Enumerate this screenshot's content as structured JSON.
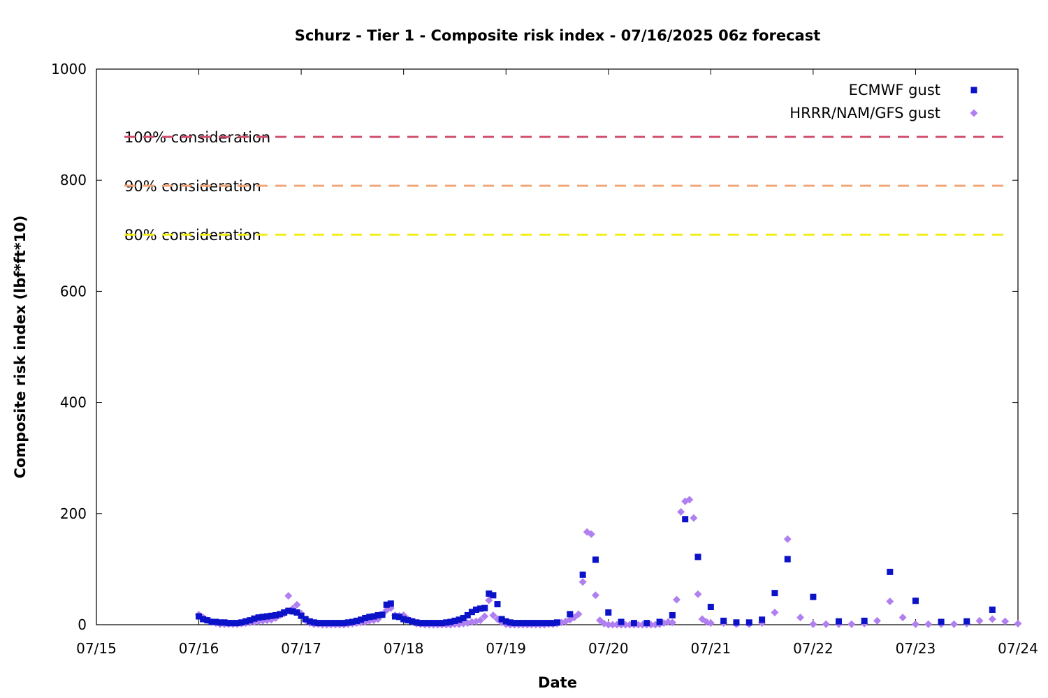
{
  "chart_data": {
    "type": "scatter",
    "title": "Schurz - Tier 1 - Composite risk index - 07/16/2025 06z forecast",
    "xlabel": "Date",
    "ylabel": "Composite risk index (lbf*ft*10)",
    "x_unit": "days",
    "xlim": [
      "07/15",
      "07/24"
    ],
    "ylim": [
      0,
      1000
    ],
    "x_ticks": [
      "07/15",
      "07/16",
      "07/17",
      "07/18",
      "07/19",
      "07/20",
      "07/21",
      "07/22",
      "07/23",
      "07/24"
    ],
    "y_ticks": [
      0,
      200,
      400,
      600,
      800,
      1000
    ],
    "grid": false,
    "legend_position": "top-right",
    "reference_lines": [
      {
        "label": "100% consideration",
        "value": 878,
        "color": "#d0506e"
      },
      {
        "label": "90% consideration",
        "value": 790,
        "color": "#f2a678"
      },
      {
        "label": "80% consideration",
        "value": 702,
        "color": "#f3ee1a"
      }
    ],
    "series": [
      {
        "name": "ECMWF gust",
        "marker": "square",
        "color": "#0b12c8",
        "points": [
          [
            "07/16 00z",
            15
          ],
          [
            "07/16 01z",
            10
          ],
          [
            "07/16 02z",
            8
          ],
          [
            "07/16 03z",
            5
          ],
          [
            "07/16 04z",
            5
          ],
          [
            "07/16 05z",
            4
          ],
          [
            "07/16 06z",
            4
          ],
          [
            "07/16 07z",
            3
          ],
          [
            "07/16 08z",
            3
          ],
          [
            "07/16 09z",
            3
          ],
          [
            "07/16 10z",
            4
          ],
          [
            "07/16 11z",
            6
          ],
          [
            "07/16 12z",
            8
          ],
          [
            "07/16 13z",
            11
          ],
          [
            "07/16 14z",
            13
          ],
          [
            "07/16 15z",
            14
          ],
          [
            "07/16 16z",
            15
          ],
          [
            "07/16 17z",
            16
          ],
          [
            "07/16 18z",
            17
          ],
          [
            "07/16 19z",
            19
          ],
          [
            "07/16 20z",
            22
          ],
          [
            "07/16 21z",
            25
          ],
          [
            "07/16 22z",
            24
          ],
          [
            "07/16 23z",
            22
          ],
          [
            "07/17 00z",
            16
          ],
          [
            "07/17 01z",
            10
          ],
          [
            "07/17 02z",
            6
          ],
          [
            "07/17 03z",
            4
          ],
          [
            "07/17 04z",
            3
          ],
          [
            "07/17 05z",
            3
          ],
          [
            "07/17 06z",
            3
          ],
          [
            "07/17 07z",
            3
          ],
          [
            "07/17 08z",
            3
          ],
          [
            "07/17 09z",
            3
          ],
          [
            "07/17 10z",
            3
          ],
          [
            "07/17 11z",
            4
          ],
          [
            "07/17 12z",
            5
          ],
          [
            "07/17 13z",
            7
          ],
          [
            "07/17 14z",
            9
          ],
          [
            "07/17 15z",
            12
          ],
          [
            "07/17 16z",
            14
          ],
          [
            "07/17 17z",
            15
          ],
          [
            "07/17 18z",
            17
          ],
          [
            "07/17 19z",
            18
          ],
          [
            "07/17 20z",
            36
          ],
          [
            "07/17 21z",
            38
          ],
          [
            "07/17 22z",
            15
          ],
          [
            "07/17 23z",
            14
          ],
          [
            "07/18 00z",
            10
          ],
          [
            "07/18 01z",
            8
          ],
          [
            "07/18 02z",
            6
          ],
          [
            "07/18 03z",
            4
          ],
          [
            "07/18 04z",
            3
          ],
          [
            "07/18 05z",
            3
          ],
          [
            "07/18 06z",
            3
          ],
          [
            "07/18 07z",
            3
          ],
          [
            "07/18 08z",
            3
          ],
          [
            "07/18 09z",
            3
          ],
          [
            "07/18 10z",
            4
          ],
          [
            "07/18 11z",
            5
          ],
          [
            "07/18 12z",
            7
          ],
          [
            "07/18 13z",
            9
          ],
          [
            "07/18 14z",
            12
          ],
          [
            "07/18 15z",
            17
          ],
          [
            "07/18 16z",
            23
          ],
          [
            "07/18 17z",
            27
          ],
          [
            "07/18 18z",
            29
          ],
          [
            "07/18 19z",
            30
          ],
          [
            "07/18 20z",
            56
          ],
          [
            "07/18 21z",
            53
          ],
          [
            "07/18 22z",
            37
          ],
          [
            "07/18 23z",
            10
          ],
          [
            "07/19 00z",
            6
          ],
          [
            "07/19 01z",
            4
          ],
          [
            "07/19 02z",
            3
          ],
          [
            "07/19 03z",
            3
          ],
          [
            "07/19 04z",
            3
          ],
          [
            "07/19 05z",
            3
          ],
          [
            "07/19 06z",
            3
          ],
          [
            "07/19 07z",
            3
          ],
          [
            "07/19 08z",
            3
          ],
          [
            "07/19 09z",
            3
          ],
          [
            "07/19 10z",
            3
          ],
          [
            "07/19 11z",
            3
          ],
          [
            "07/19 12z",
            4
          ],
          [
            "07/19 15z",
            19
          ],
          [
            "07/19 18z",
            90
          ],
          [
            "07/19 21z",
            117
          ],
          [
            "07/20 00z",
            22
          ],
          [
            "07/20 03z",
            5
          ],
          [
            "07/20 06z",
            3
          ],
          [
            "07/20 09z",
            3
          ],
          [
            "07/20 12z",
            5
          ],
          [
            "07/20 15z",
            17
          ],
          [
            "07/20 18z",
            190
          ],
          [
            "07/20 21z",
            122
          ],
          [
            "07/21 00z",
            32
          ],
          [
            "07/21 03z",
            7
          ],
          [
            "07/21 06z",
            4
          ],
          [
            "07/21 09z",
            4
          ],
          [
            "07/21 12z",
            9
          ],
          [
            "07/21 15z",
            57
          ],
          [
            "07/21 18z",
            118
          ],
          [
            "07/22 00z",
            50
          ],
          [
            "07/22 06z",
            6
          ],
          [
            "07/22 12z",
            7
          ],
          [
            "07/22 18z",
            95
          ],
          [
            "07/23 00z",
            43
          ],
          [
            "07/23 06z",
            5
          ],
          [
            "07/23 12z",
            6
          ],
          [
            "07/23 18z",
            27
          ]
        ]
      },
      {
        "name": "HRRR/NAM/GFS gust",
        "marker": "diamond",
        "color": "#b07ff0",
        "points": [
          [
            "07/16 00z",
            18
          ],
          [
            "07/16 01z",
            13
          ],
          [
            "07/16 02z",
            8
          ],
          [
            "07/16 03z",
            5
          ],
          [
            "07/16 04z",
            3
          ],
          [
            "07/16 05z",
            1
          ],
          [
            "07/16 06z",
            1
          ],
          [
            "07/16 07z",
            1
          ],
          [
            "07/16 08z",
            1
          ],
          [
            "07/16 09z",
            1
          ],
          [
            "07/16 10z",
            2
          ],
          [
            "07/16 11z",
            3
          ],
          [
            "07/16 12z",
            4
          ],
          [
            "07/16 13z",
            5
          ],
          [
            "07/16 14z",
            6
          ],
          [
            "07/16 15z",
            7
          ],
          [
            "07/16 16z",
            8
          ],
          [
            "07/16 17z",
            9
          ],
          [
            "07/16 18z",
            12
          ],
          [
            "07/16 19z",
            17
          ],
          [
            "07/16 20z",
            20
          ],
          [
            "07/16 21z",
            52
          ],
          [
            "07/16 22z",
            29
          ],
          [
            "07/16 23z",
            36
          ],
          [
            "07/17 00z",
            20
          ],
          [
            "07/17 01z",
            8
          ],
          [
            "07/17 02z",
            3
          ],
          [
            "07/17 03z",
            1
          ],
          [
            "07/17 04z",
            1
          ],
          [
            "07/17 05z",
            0
          ],
          [
            "07/17 06z",
            0
          ],
          [
            "07/17 07z",
            0
          ],
          [
            "07/17 08z",
            0
          ],
          [
            "07/17 09z",
            0
          ],
          [
            "07/17 10z",
            0
          ],
          [
            "07/17 11z",
            1
          ],
          [
            "07/17 12z",
            2
          ],
          [
            "07/17 13z",
            3
          ],
          [
            "07/17 14z",
            4
          ],
          [
            "07/17 15z",
            5
          ],
          [
            "07/17 16z",
            7
          ],
          [
            "07/17 17z",
            8
          ],
          [
            "07/17 18z",
            10
          ],
          [
            "07/17 19z",
            18
          ],
          [
            "07/17 20z",
            26
          ],
          [
            "07/17 21z",
            30
          ],
          [
            "07/17 22z",
            17
          ],
          [
            "07/17 23z",
            16
          ],
          [
            "07/18 00z",
            17
          ],
          [
            "07/18 01z",
            10
          ],
          [
            "07/18 02z",
            6
          ],
          [
            "07/18 03z",
            2
          ],
          [
            "07/18 04z",
            1
          ],
          [
            "07/18 05z",
            0
          ],
          [
            "07/18 06z",
            0
          ],
          [
            "07/18 07z",
            0
          ],
          [
            "07/18 08z",
            0
          ],
          [
            "07/18 09z",
            0
          ],
          [
            "07/18 10z",
            0
          ],
          [
            "07/18 11z",
            0
          ],
          [
            "07/18 12z",
            1
          ],
          [
            "07/18 13z",
            1
          ],
          [
            "07/18 14z",
            2
          ],
          [
            "07/18 15z",
            3
          ],
          [
            "07/18 16z",
            5
          ],
          [
            "07/18 17z",
            6
          ],
          [
            "07/18 18z",
            8
          ],
          [
            "07/18 19z",
            15
          ],
          [
            "07/18 20z",
            44
          ],
          [
            "07/18 21z",
            17
          ],
          [
            "07/18 22z",
            10
          ],
          [
            "07/18 23z",
            4
          ],
          [
            "07/19 00z",
            1
          ],
          [
            "07/19 01z",
            0
          ],
          [
            "07/19 02z",
            0
          ],
          [
            "07/19 03z",
            0
          ],
          [
            "07/19 04z",
            0
          ],
          [
            "07/19 05z",
            0
          ],
          [
            "07/19 06z",
            0
          ],
          [
            "07/19 07z",
            0
          ],
          [
            "07/19 08z",
            0
          ],
          [
            "07/19 09z",
            0
          ],
          [
            "07/19 10z",
            1
          ],
          [
            "07/19 11z",
            1
          ],
          [
            "07/19 12z",
            2
          ],
          [
            "07/19 13z",
            4
          ],
          [
            "07/19 14z",
            6
          ],
          [
            "07/19 15z",
            9
          ],
          [
            "07/19 16z",
            13
          ],
          [
            "07/19 17z",
            19
          ],
          [
            "07/19 18z",
            77
          ],
          [
            "07/19 19z",
            167
          ],
          [
            "07/19 20z",
            163
          ],
          [
            "07/19 21z",
            53
          ],
          [
            "07/19 22z",
            8
          ],
          [
            "07/19 23z",
            2
          ],
          [
            "07/20 00z",
            0
          ],
          [
            "07/20 01z",
            0
          ],
          [
            "07/20 02z",
            0
          ],
          [
            "07/20 03z",
            0
          ],
          [
            "07/20 04z",
            0
          ],
          [
            "07/20 05z",
            0
          ],
          [
            "07/20 06z",
            0
          ],
          [
            "07/20 07z",
            0
          ],
          [
            "07/20 08z",
            0
          ],
          [
            "07/20 09z",
            0
          ],
          [
            "07/20 10z",
            0
          ],
          [
            "07/20 11z",
            0
          ],
          [
            "07/20 12z",
            1
          ],
          [
            "07/20 13z",
            3
          ],
          [
            "07/20 14z",
            5
          ],
          [
            "07/20 15z",
            4
          ],
          [
            "07/20 16z",
            45
          ],
          [
            "07/20 17z",
            203
          ],
          [
            "07/20 18z",
            222
          ],
          [
            "07/20 19z",
            225
          ],
          [
            "07/20 20z",
            192
          ],
          [
            "07/20 21z",
            55
          ],
          [
            "07/20 22z",
            10
          ],
          [
            "07/20 23z",
            5
          ],
          [
            "07/21 00z",
            3
          ],
          [
            "07/21 03z",
            3
          ],
          [
            "07/21 06z",
            1
          ],
          [
            "07/21 09z",
            1
          ],
          [
            "07/21 12z",
            3
          ],
          [
            "07/21 15z",
            22
          ],
          [
            "07/21 18z",
            154
          ],
          [
            "07/21 21z",
            13
          ],
          [
            "07/22 00z",
            1
          ],
          [
            "07/22 03z",
            1
          ],
          [
            "07/22 06z",
            1
          ],
          [
            "07/22 09z",
            1
          ],
          [
            "07/22 12z",
            2
          ],
          [
            "07/22 15z",
            7
          ],
          [
            "07/22 18z",
            42
          ],
          [
            "07/22 21z",
            13
          ],
          [
            "07/23 00z",
            1
          ],
          [
            "07/23 03z",
            1
          ],
          [
            "07/23 06z",
            1
          ],
          [
            "07/23 09z",
            1
          ],
          [
            "07/23 12z",
            2
          ],
          [
            "07/23 15z",
            7
          ],
          [
            "07/23 18z",
            10
          ],
          [
            "07/23 21z",
            6
          ],
          [
            "07/24 00z",
            2
          ]
        ]
      }
    ]
  }
}
